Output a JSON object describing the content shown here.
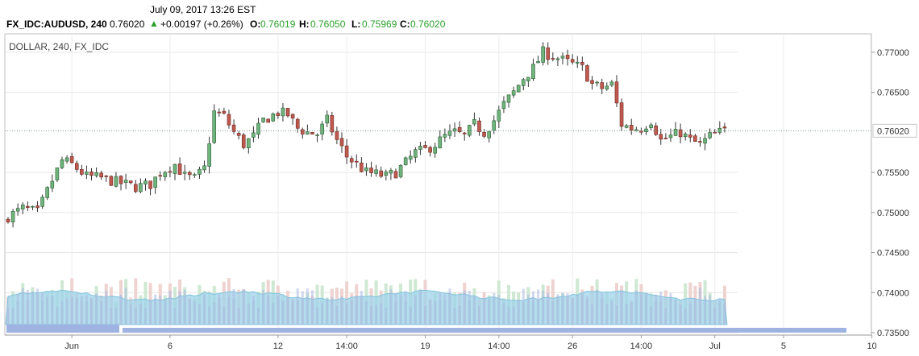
{
  "header": {
    "datetime": "July 09, 2017 13:26 EST",
    "symbol": "FX_IDC:AUDUSD, 240",
    "last": "0.76020",
    "change": "+0.00197 (+0.26%)",
    "o_label": "O:",
    "o_value": "0.76019",
    "h_label": "H:",
    "h_value": "0.76050",
    "l_label": "L:",
    "l_value": "0.75969",
    "c_label": "C:",
    "c_value": "0.76020",
    "up_color": "#2ca02c"
  },
  "chart": {
    "legend": "DOLLAR, 240, FX_IDC",
    "current_price_label": "0.76020"
  },
  "chart_data": {
    "type": "candlestick",
    "y_ticks": [
      "0.77000",
      "0.76500",
      "0.76020",
      "0.75500",
      "0.75000",
      "0.74500",
      "0.74000",
      "0.73500"
    ],
    "y_tick_values": [
      0.77,
      0.765,
      0.7602,
      0.755,
      0.75,
      0.745,
      0.74,
      0.735
    ],
    "ylim": [
      0.7347,
      0.7723
    ],
    "x_ticks": [
      "Jun",
      "6",
      "12",
      "14:00",
      "19",
      "14:00",
      "26",
      "14:00",
      "Jul",
      "5",
      "10"
    ],
    "x_tick_bar_index": [
      13,
      33,
      55,
      69,
      85,
      100,
      115,
      129,
      144,
      158,
      176
    ],
    "current_price": 0.7602,
    "colors": {
      "up": "#4e9a5a",
      "down": "#b5483f",
      "up_fill": "#6fb47c",
      "down_fill": "#c0594e",
      "volume_up": "#cfe8d3",
      "volume_down": "#eed3d0",
      "volume_area": "#9dd3ea"
    },
    "candle_anchors": [
      [
        0,
        0.7495
      ],
      [
        3,
        0.7505
      ],
      [
        6,
        0.75
      ],
      [
        9,
        0.754
      ],
      [
        11,
        0.7565
      ],
      [
        13,
        0.756
      ],
      [
        16,
        0.7545
      ],
      [
        19,
        0.7543
      ],
      [
        22,
        0.7538
      ],
      [
        26,
        0.7532
      ],
      [
        29,
        0.7535
      ],
      [
        31,
        0.755
      ],
      [
        34,
        0.756
      ],
      [
        36,
        0.7545
      ],
      [
        38,
        0.7542
      ],
      [
        40,
        0.7555
      ],
      [
        42,
        0.7625
      ],
      [
        44,
        0.762
      ],
      [
        46,
        0.76
      ],
      [
        48,
        0.7585
      ],
      [
        50,
        0.7595
      ],
      [
        52,
        0.7615
      ],
      [
        55,
        0.7625
      ],
      [
        57,
        0.7622
      ],
      [
        59,
        0.7605
      ],
      [
        61,
        0.76
      ],
      [
        63,
        0.7598
      ],
      [
        65,
        0.7615
      ],
      [
        67,
        0.759
      ],
      [
        69,
        0.757
      ],
      [
        71,
        0.756
      ],
      [
        73,
        0.755
      ],
      [
        75,
        0.7548
      ],
      [
        77,
        0.7545
      ],
      [
        79,
        0.755
      ],
      [
        81,
        0.7562
      ],
      [
        83,
        0.7575
      ],
      [
        85,
        0.7578
      ],
      [
        87,
        0.7585
      ],
      [
        89,
        0.7595
      ],
      [
        91,
        0.76
      ],
      [
        93,
        0.7595
      ],
      [
        95,
        0.761
      ],
      [
        97,
        0.76
      ],
      [
        99,
        0.7615
      ],
      [
        101,
        0.7635
      ],
      [
        103,
        0.765
      ],
      [
        105,
        0.7668
      ],
      [
        107,
        0.768
      ],
      [
        109,
        0.77
      ],
      [
        111,
        0.7695
      ],
      [
        113,
        0.769
      ],
      [
        115,
        0.7685
      ],
      [
        117,
        0.768
      ],
      [
        119,
        0.766
      ],
      [
        121,
        0.7655
      ],
      [
        123,
        0.766
      ],
      [
        125,
        0.761
      ],
      [
        127,
        0.7605
      ],
      [
        129,
        0.7605
      ],
      [
        131,
        0.7615
      ],
      [
        133,
        0.759
      ],
      [
        135,
        0.7595
      ],
      [
        137,
        0.76
      ],
      [
        139,
        0.759
      ],
      [
        141,
        0.7585
      ],
      [
        143,
        0.7595
      ],
      [
        145,
        0.76
      ],
      [
        146,
        0.7602
      ]
    ]
  }
}
